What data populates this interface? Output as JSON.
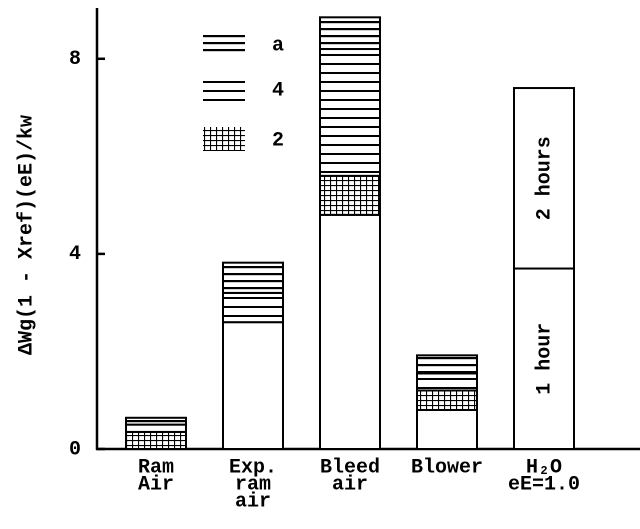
{
  "chart_data": {
    "type": "stacked_bar",
    "ylabel": "ΔWg(1 - Xref)(eE)/kw",
    "categories": [
      [
        "Ram",
        "Air"
      ],
      [
        "Exp.",
        "ram",
        "air"
      ],
      [
        "Bleed",
        "air"
      ],
      [
        "Blower"
      ],
      [
        "H₂O",
        "eE=1.0"
      ]
    ],
    "series": [
      {
        "color": "#000000",
        "pattern": "none",
        "values": [
          0,
          2.6,
          4.8,
          0.8,
          null
        ]
      },
      {
        "name": "2",
        "color": "#000000",
        "pattern": "grid",
        "legend": true,
        "values": [
          0.35,
          0,
          0.8,
          0.4,
          null
        ]
      },
      {
        "name": "4",
        "color": "#000000",
        "pattern": "lines",
        "legend": true,
        "values": [
          0.15,
          0.6,
          2.6,
          0.35,
          null
        ]
      },
      {
        "name": "a",
        "color": "#000000",
        "pattern": "lines-dense",
        "legend": true,
        "values": [
          0.14,
          0.62,
          0.65,
          0.37,
          null
        ]
      },
      {
        "name": "1 hour",
        "color": "#000000",
        "pattern": "none",
        "inside_label": true,
        "values": [
          null,
          null,
          null,
          null,
          3.7
        ]
      },
      {
        "name": "2 hours",
        "color": "#000000",
        "pattern": "none",
        "inside_label": true,
        "values": [
          null,
          null,
          null,
          null,
          3.7
        ]
      }
    ],
    "ylim": [
      0,
      9
    ],
    "yticks": [
      0,
      4,
      8
    ],
    "grid": false
  }
}
